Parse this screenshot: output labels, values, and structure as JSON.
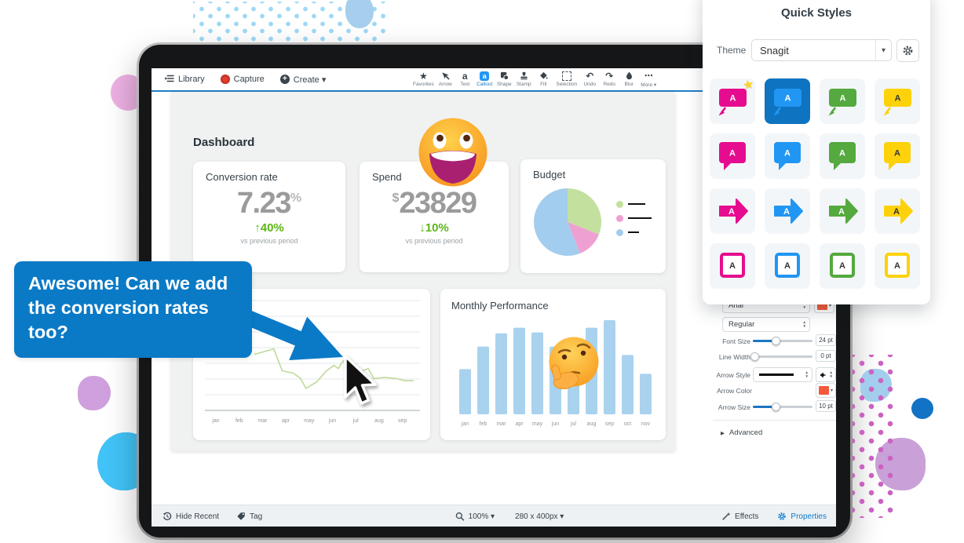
{
  "ui": {
    "caret": "▾",
    "stepper_up": "▲",
    "stepper_down": "▼",
    "star": "★",
    "undo_glyph": "↶",
    "redo_glyph": "↷",
    "ellipsis": "⋯",
    "advanced_arrow": "▶",
    "letter": "A",
    "text_tool_glyph": "a",
    "callout_tool_glyph": "a",
    "plus": "+"
  },
  "toolbar": {
    "library": "Library",
    "capture": "Capture",
    "create": "Create ▾",
    "tools": [
      {
        "id": "favorites",
        "label": "Favorites"
      },
      {
        "id": "arrow",
        "label": "Arrow"
      },
      {
        "id": "text",
        "label": "Text"
      },
      {
        "id": "callout",
        "label": "Callout",
        "selected": true
      },
      {
        "id": "shape",
        "label": "Shape"
      },
      {
        "id": "stamp",
        "label": "Stamp"
      },
      {
        "id": "fill",
        "label": "Fill"
      },
      {
        "id": "selection",
        "label": "Selection"
      },
      {
        "id": "undo",
        "label": "Undo"
      },
      {
        "id": "redo",
        "label": "Redo"
      },
      {
        "id": "blur",
        "label": "Blur"
      },
      {
        "id": "more",
        "label": "More ▾"
      }
    ]
  },
  "quick_styles": {
    "title": "Quick Styles",
    "theme_label": "Theme",
    "theme_value": "Snagit",
    "shape_rows": [
      "callout-arrow",
      "speech-bubble",
      "block-arrow",
      "square-outline"
    ],
    "colors": [
      {
        "name": "pink",
        "hex": "#e60c8f"
      },
      {
        "name": "blue",
        "hex": "#2196f3"
      },
      {
        "name": "green",
        "hex": "#54a93f"
      },
      {
        "name": "yellow",
        "hex": "#fdd20a"
      }
    ],
    "selected": {
      "row": 0,
      "col": 1
    },
    "starred": {
      "row": 0,
      "col": 0
    },
    "selected_bg": "#0e73c0"
  },
  "properties": {
    "font": "Arial",
    "font_style": "Regular",
    "font_size_label": "Font Size",
    "font_size_value": "24 pt",
    "font_size_pct": 38,
    "line_width_label": "Line Width",
    "line_width_value": "0 pt",
    "line_width_pct": 3,
    "arrow_style_label": "Arrow Style",
    "arrow_color_label": "Arrow Color",
    "arrow_size_label": "Arrow Size",
    "arrow_size_value": "10 pt",
    "arrow_size_pct": 38,
    "advanced_label": "Advanced",
    "accent_color": "#f4593c"
  },
  "statusbar": {
    "hide_recent": "Hide Recent",
    "tag": "Tag",
    "zoom": "100% ▾",
    "canvas_size": "280 x 400px ▾",
    "effects": "Effects",
    "properties": "Properties"
  },
  "callout": {
    "text": "Awesome! Can we add the conversion rates too?",
    "fill": "#0a7ac6"
  },
  "dashboard": {
    "title": "Dashboard",
    "stats": [
      {
        "title": "Conversion rate",
        "prefix": "",
        "value": "7.23",
        "suffix": "%",
        "arrow": "↑",
        "delta": "40%",
        "note": "vs previous period"
      },
      {
        "title": "Spend",
        "prefix": "$",
        "value": "23829",
        "suffix": "",
        "arrow": "↓",
        "delta": "10%",
        "note": "vs previous period"
      }
    ]
  },
  "chart_data": [
    {
      "type": "pie",
      "title": "Budget",
      "slices": [
        {
          "pct": 31,
          "color": "#c3e09e"
        },
        {
          "pct": 13,
          "color": "#efa0d2"
        },
        {
          "pct": 56,
          "color": "#a3cdee"
        }
      ],
      "legend_placeholder_line_widths": [
        22,
        30,
        14
      ],
      "legend_dot_colors": [
        "#c3e09e",
        "#efa0d2",
        "#a3cdee"
      ],
      "legend_position": "right"
    },
    {
      "type": "line",
      "title": "",
      "x_labels": [
        "jan",
        "feb",
        "mar",
        "apr",
        "may",
        "jun",
        "jul",
        "aug",
        "sep"
      ],
      "line_color": "#bdd998",
      "grid": true,
      "points_pct": [
        [
          23,
          51
        ],
        [
          32,
          56
        ],
        [
          36,
          36
        ],
        [
          41,
          34
        ],
        [
          44.5,
          29
        ],
        [
          47,
          20
        ],
        [
          52,
          26
        ],
        [
          56.5,
          36
        ],
        [
          60,
          41
        ],
        [
          62,
          38
        ],
        [
          63.5,
          43
        ],
        [
          65,
          46
        ],
        [
          73,
          36
        ],
        [
          76,
          38
        ],
        [
          78.5,
          29
        ],
        [
          83.5,
          30
        ],
        [
          89,
          29
        ],
        [
          93,
          27
        ],
        [
          97,
          27
        ]
      ]
    },
    {
      "type": "bar",
      "title": "Monthly Performance",
      "categories": [
        "jan",
        "feb",
        "mar",
        "apr",
        "may",
        "jun",
        "jul",
        "aug",
        "sep",
        "oct",
        "nov"
      ],
      "values_pct": [
        48,
        72,
        86,
        92,
        87,
        72,
        63,
        92,
        100,
        63,
        43
      ],
      "bar_color": "#a9d2ef",
      "grid": false
    }
  ]
}
